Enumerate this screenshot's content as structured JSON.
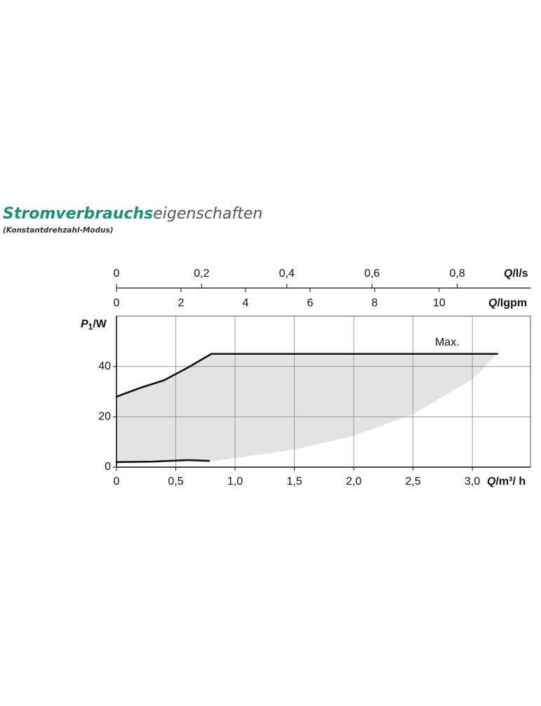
{
  "chart_data": {
    "type": "line",
    "title": {
      "bold": "Stromverbrauchs",
      "light": "eigenschaften"
    },
    "subtitle": "(Konstantdrehzahl-Modus)",
    "x_label": {
      "symbol": "Q",
      "unit": "/m³/ h"
    },
    "y_label": {
      "symbol": "P",
      "subscript": "1",
      "unit": "/W"
    },
    "xlim": [
      0,
      3.49
    ],
    "xticks": [
      0,
      {
        "value": 0.5,
        "label": "0,5"
      },
      {
        "value": 1.0,
        "label": "1,0"
      },
      {
        "value": 1.5,
        "label": "1,5"
      },
      {
        "value": 2.0,
        "label": "2,0"
      },
      {
        "value": 2.5,
        "label": "2,5"
      },
      {
        "value": 3.0,
        "label": "3,0"
      }
    ],
    "ylim": [
      0,
      60
    ],
    "yticks": [
      0,
      20,
      40
    ],
    "grid": true,
    "top_axes": [
      {
        "label": {
          "symbol": "Q",
          "unit": "/l/s"
        },
        "lim": [
          0,
          0.972
        ],
        "ticks": [
          0,
          {
            "value": 0.2,
            "label": "0,2"
          },
          {
            "value": 0.4,
            "label": "0,4"
          },
          {
            "value": 0.6,
            "label": "0,6"
          },
          {
            "value": 0.8,
            "label": "0,8"
          }
        ]
      },
      {
        "label": {
          "symbol": "Q",
          "unit": "/Igpm"
        },
        "lim": [
          0,
          12.83
        ],
        "ticks": [
          0,
          2,
          4,
          6,
          8,
          10
        ]
      }
    ],
    "area": {
      "color": "#e3e3e3",
      "x": [
        0,
        0.2,
        0.4,
        0.6,
        0.8,
        1.0,
        1.5,
        2.0,
        2.5,
        3.0,
        3.21
      ],
      "upper": [
        28,
        31.5,
        34.5,
        39.5,
        45,
        45,
        45,
        45,
        45,
        45,
        45
      ],
      "lower": [
        2,
        2.1,
        2.3,
        2.8,
        2.4,
        3.6,
        7,
        12.5,
        21,
        35,
        45
      ]
    },
    "series": [
      {
        "color": "#111111",
        "x": [
          0,
          0.2,
          0.4,
          0.6,
          0.8,
          3.21
        ],
        "values": [
          28,
          31.5,
          34.5,
          39.5,
          45,
          45
        ]
      },
      {
        "color": "#111111",
        "x": [
          0,
          0.3,
          0.5,
          0.6,
          0.78
        ],
        "values": [
          2,
          2.2,
          2.6,
          2.8,
          2.5
        ]
      }
    ],
    "annotation": "Max."
  }
}
